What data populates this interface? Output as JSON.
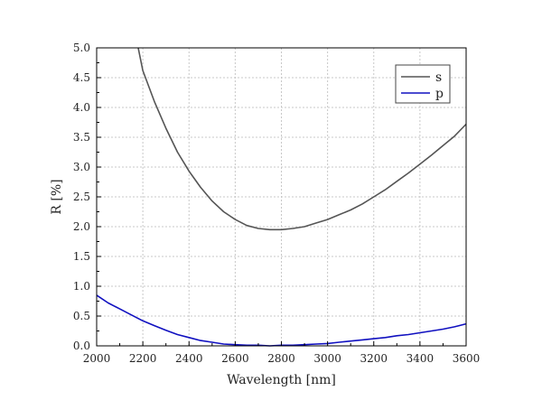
{
  "chart_data": {
    "type": "line",
    "title": "",
    "xlabel": "Wavelength [nm]",
    "ylabel": "R [%]",
    "xlim": [
      2000,
      3600
    ],
    "ylim": [
      0,
      5.0
    ],
    "x_ticks": [
      "2000",
      "2200",
      "2400",
      "2600",
      "2800",
      "3000",
      "3200",
      "3400",
      "3600"
    ],
    "y_ticks": [
      "0.0",
      "0.5",
      "1.0",
      "1.5",
      "2.0",
      "2.5",
      "3.0",
      "3.5",
      "4.0",
      "4.5",
      "5.0"
    ],
    "grid": true,
    "legend_position": "top-right",
    "series": [
      {
        "name": "s",
        "color": "#555555",
        "x": [
          2180,
          2200,
          2250,
          2300,
          2350,
          2400,
          2450,
          2500,
          2550,
          2600,
          2650,
          2700,
          2750,
          2800,
          2850,
          2900,
          2950,
          3000,
          3050,
          3100,
          3150,
          3200,
          3250,
          3300,
          3350,
          3400,
          3450,
          3500,
          3550,
          3600
        ],
        "y": [
          5.0,
          4.62,
          4.1,
          3.65,
          3.25,
          2.93,
          2.66,
          2.43,
          2.25,
          2.12,
          2.02,
          1.97,
          1.95,
          1.95,
          1.97,
          2.0,
          2.06,
          2.12,
          2.2,
          2.28,
          2.38,
          2.5,
          2.62,
          2.76,
          2.9,
          3.05,
          3.2,
          3.36,
          3.52,
          3.72
        ]
      },
      {
        "name": "p",
        "color": "#1010c0",
        "x": [
          2000,
          2050,
          2100,
          2150,
          2200,
          2250,
          2300,
          2350,
          2400,
          2450,
          2500,
          2550,
          2600,
          2650,
          2700,
          2750,
          2800,
          2850,
          2900,
          2950,
          3000,
          3050,
          3100,
          3150,
          3200,
          3250,
          3300,
          3350,
          3400,
          3450,
          3500,
          3550,
          3600
        ],
        "y": [
          0.85,
          0.72,
          0.62,
          0.52,
          0.42,
          0.34,
          0.26,
          0.19,
          0.14,
          0.09,
          0.06,
          0.03,
          0.02,
          0.01,
          0.01,
          0.0,
          0.01,
          0.01,
          0.02,
          0.03,
          0.04,
          0.06,
          0.08,
          0.1,
          0.12,
          0.14,
          0.17,
          0.19,
          0.22,
          0.25,
          0.28,
          0.32,
          0.37
        ]
      }
    ]
  }
}
